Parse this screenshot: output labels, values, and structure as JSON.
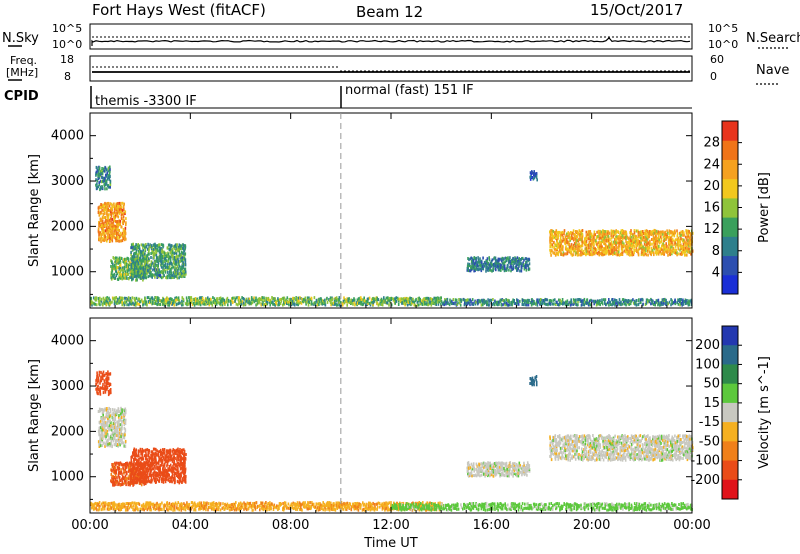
{
  "header": {
    "radar": "Fort Hays West (fitACF)",
    "beam": "Beam 12",
    "date": "15/Oct/2017"
  },
  "panels": {
    "nsky_label": "N.Sky",
    "nsky_ticks": [
      "10^5",
      "10^0"
    ],
    "nsearch_label": "N.Search",
    "nsearch_ticks": [
      "10^5",
      "10^0"
    ],
    "freq_label_line1": "Freq.",
    "freq_label_line2": "[MHz]",
    "freq_ticks": [
      "18",
      "8"
    ],
    "nave_label": "Nave",
    "nave_ticks": [
      "60",
      "0"
    ],
    "cpid_label": "CPID",
    "cpid_segments": [
      {
        "label": "themis -3300 IF",
        "start_hour": 0.0
      },
      {
        "label": "normal (fast) 151 IF",
        "start_hour": 10.0
      }
    ]
  },
  "chart_data": [
    {
      "type": "heatmap",
      "title": "",
      "ylabel": "Slant Range [km]",
      "xlabel": "",
      "x_ticks": [
        "00:00",
        "04:00",
        "08:00",
        "12:00",
        "16:00",
        "20:00",
        "00:00"
      ],
      "x_range_hours": [
        0,
        24
      ],
      "ylim": [
        200,
        4500
      ],
      "y_ticks": [
        1000,
        2000,
        3000,
        4000
      ],
      "colorbar": {
        "label": "Power [dB]",
        "ticks": [
          4,
          8,
          12,
          16,
          20,
          24,
          28
        ],
        "colors": [
          "#1a2fd6",
          "#2c4fb0",
          "#2e7f8c",
          "#3aa05c",
          "#8fc43a",
          "#f2c81e",
          "#f5a11f",
          "#f07418",
          "#e8341c"
        ]
      },
      "regions": [
        {
          "t0": 0.0,
          "t1": 14.0,
          "r0": 250,
          "r1": 420,
          "value": 14
        },
        {
          "t0": 14.0,
          "t1": 24.0,
          "r0": 250,
          "r1": 380,
          "value": 10
        },
        {
          "t0": 0.3,
          "t1": 1.4,
          "r0": 1650,
          "r1": 2500,
          "value": 24
        },
        {
          "t0": 0.2,
          "t1": 0.8,
          "r0": 2800,
          "r1": 3300,
          "value": 10
        },
        {
          "t0": 0.8,
          "t1": 2.2,
          "r0": 800,
          "r1": 1300,
          "value": 14
        },
        {
          "t0": 1.6,
          "t1": 3.8,
          "r0": 850,
          "r1": 1600,
          "value": 12
        },
        {
          "t0": 18.3,
          "t1": 24.0,
          "r0": 1350,
          "r1": 1900,
          "value": 22
        },
        {
          "t0": 15.0,
          "t1": 17.5,
          "r0": 1000,
          "r1": 1300,
          "value": 9
        },
        {
          "t0": 17.5,
          "t1": 17.8,
          "r0": 3000,
          "r1": 3200,
          "value": 5
        }
      ]
    },
    {
      "type": "heatmap",
      "title": "",
      "ylabel": "Slant Range [km]",
      "xlabel": "Time UT",
      "x_ticks": [
        "00:00",
        "04:00",
        "08:00",
        "12:00",
        "16:00",
        "20:00",
        "00:00"
      ],
      "x_range_hours": [
        0,
        24
      ],
      "ylim": [
        200,
        4500
      ],
      "y_ticks": [
        1000,
        2000,
        3000,
        4000
      ],
      "colorbar": {
        "label": "Velocity [m s^-1]",
        "ticks": [
          "200",
          "100",
          "50",
          "15",
          "-15",
          "-50",
          "-100",
          "-200"
        ],
        "colors": [
          "#2338b0",
          "#2a6a8a",
          "#2e8a4a",
          "#5cc83c",
          "#c8c8c0",
          "#f5b020",
          "#f0801a",
          "#ea4c18",
          "#e0121a"
        ]
      },
      "regions": [
        {
          "t0": 0.0,
          "t1": 14.0,
          "r0": 250,
          "r1": 420,
          "value": -40
        },
        {
          "t0": 12.0,
          "t1": 24.0,
          "r0": 250,
          "r1": 400,
          "value": 30
        },
        {
          "t0": 0.3,
          "t1": 1.4,
          "r0": 1650,
          "r1": 2500,
          "value": 0
        },
        {
          "t0": 0.2,
          "t1": 0.8,
          "r0": 2800,
          "r1": 3300,
          "value": -180
        },
        {
          "t0": 0.8,
          "t1": 2.2,
          "r0": 800,
          "r1": 1300,
          "value": -110
        },
        {
          "t0": 1.6,
          "t1": 3.8,
          "r0": 850,
          "r1": 1600,
          "value": -150
        },
        {
          "t0": 18.3,
          "t1": 24.0,
          "r0": 1350,
          "r1": 1900,
          "value": 0
        },
        {
          "t0": 15.0,
          "t1": 17.5,
          "r0": 1000,
          "r1": 1300,
          "value": 0
        },
        {
          "t0": 17.5,
          "t1": 17.8,
          "r0": 3000,
          "r1": 3200,
          "value": 150
        }
      ]
    }
  ]
}
